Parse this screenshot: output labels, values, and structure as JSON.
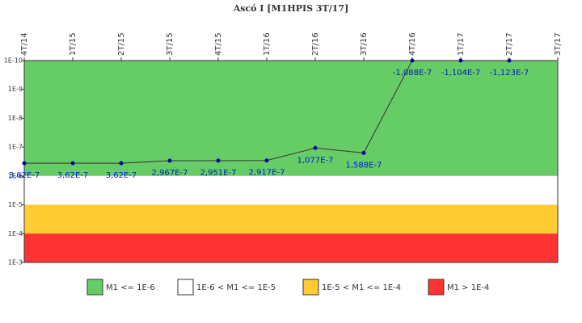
{
  "chart_data": {
    "type": "line",
    "title": "Ascó I [M1HPIS 3T/17]",
    "categories": [
      "4T/14",
      "1T/15",
      "2T/15",
      "3T/15",
      "4T/15",
      "1T/16",
      "2T/16",
      "3T/16",
      "4T/16",
      "1T/17",
      "2T/17",
      "3T/17"
    ],
    "series": [
      {
        "name": "M1",
        "color": "#333333",
        "marker_color": "#000099",
        "values": [
          3.62e-07,
          3.62e-07,
          3.62e-07,
          2.967e-07,
          2.951e-07,
          2.917e-07,
          1.077e-07,
          1.588e-07,
          -1.088e-07,
          -1.104e-07,
          -1.123e-07,
          null
        ],
        "value_labels": [
          "3,62E-7",
          "3,62E-7",
          "3,62E-7",
          "2,967E-7",
          "2,951E-7",
          "2,917E-7",
          "1,077E-7",
          "1,588E-7",
          "-1,088E-7",
          "-1,104E-7",
          "-1,123E-7",
          null
        ]
      }
    ],
    "log_scale": true,
    "y_reversed": true,
    "ylim": [
      1e-10,
      0.001
    ],
    "yticks": [
      {
        "value": 1e-10,
        "label": "1E-10"
      },
      {
        "value": 1e-09,
        "label": "1E-9"
      },
      {
        "value": 1e-08,
        "label": "1E-8"
      },
      {
        "value": 1e-07,
        "label": "1E-7"
      },
      {
        "value": 1e-06,
        "label": "1E-6"
      },
      {
        "value": 1e-05,
        "label": "1E-5"
      },
      {
        "value": 0.0001,
        "label": "1E-4"
      },
      {
        "value": 0.001,
        "label": "1E-3"
      }
    ],
    "bands": [
      {
        "name": "M1 <= 1E-6",
        "color": "#66cc66",
        "from": 1e-10,
        "to": 1e-06
      },
      {
        "name": "1E-6 < M1 <= 1E-5",
        "color": "#ffffff",
        "from": 1e-06,
        "to": 1e-05
      },
      {
        "name": "1E-5 < M1 <= 1E-4",
        "color": "#ffcc33",
        "from": 1e-05,
        "to": 0.0001
      },
      {
        "name": "M1 > 1E-4",
        "color": "#ff3333",
        "from": 0.0001,
        "to": 0.001
      }
    ]
  }
}
